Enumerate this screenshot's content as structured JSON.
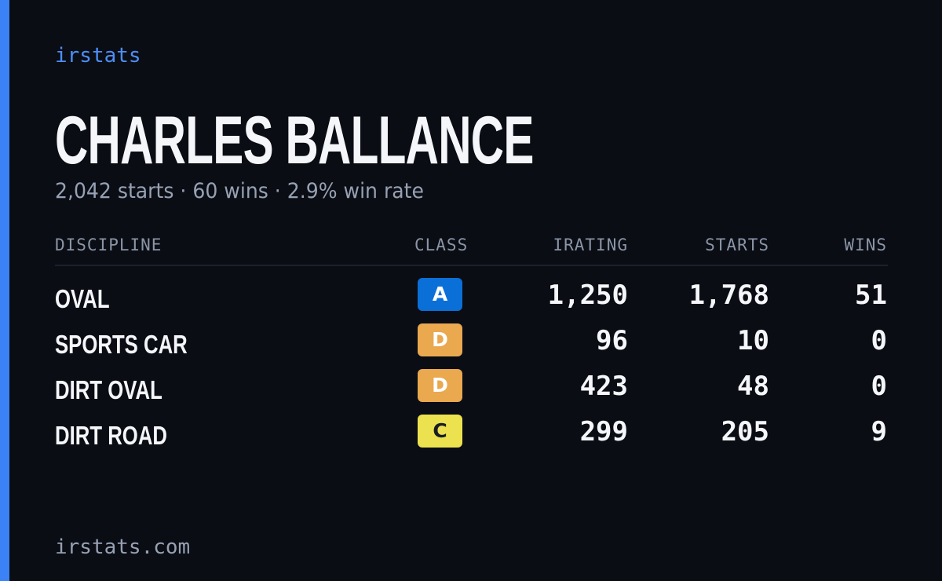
{
  "brand": "irstats",
  "driver": {
    "name": "CHARLES BALLANCE",
    "summary": "2,042 starts · 60 wins · 2.9% win rate"
  },
  "table": {
    "headers": [
      "DISCIPLINE",
      "CLASS",
      "IRATING",
      "STARTS",
      "WINS"
    ],
    "rows": [
      [
        "OVAL",
        "A",
        "1,250",
        "1,768",
        "51"
      ],
      [
        "SPORTS CAR",
        "D",
        "96",
        "10",
        "0"
      ],
      [
        "DIRT OVAL",
        "D",
        "423",
        "48",
        "0"
      ],
      [
        "DIRT ROAD",
        "C",
        "299",
        "205",
        "9"
      ]
    ]
  },
  "footer": "irstats.com"
}
